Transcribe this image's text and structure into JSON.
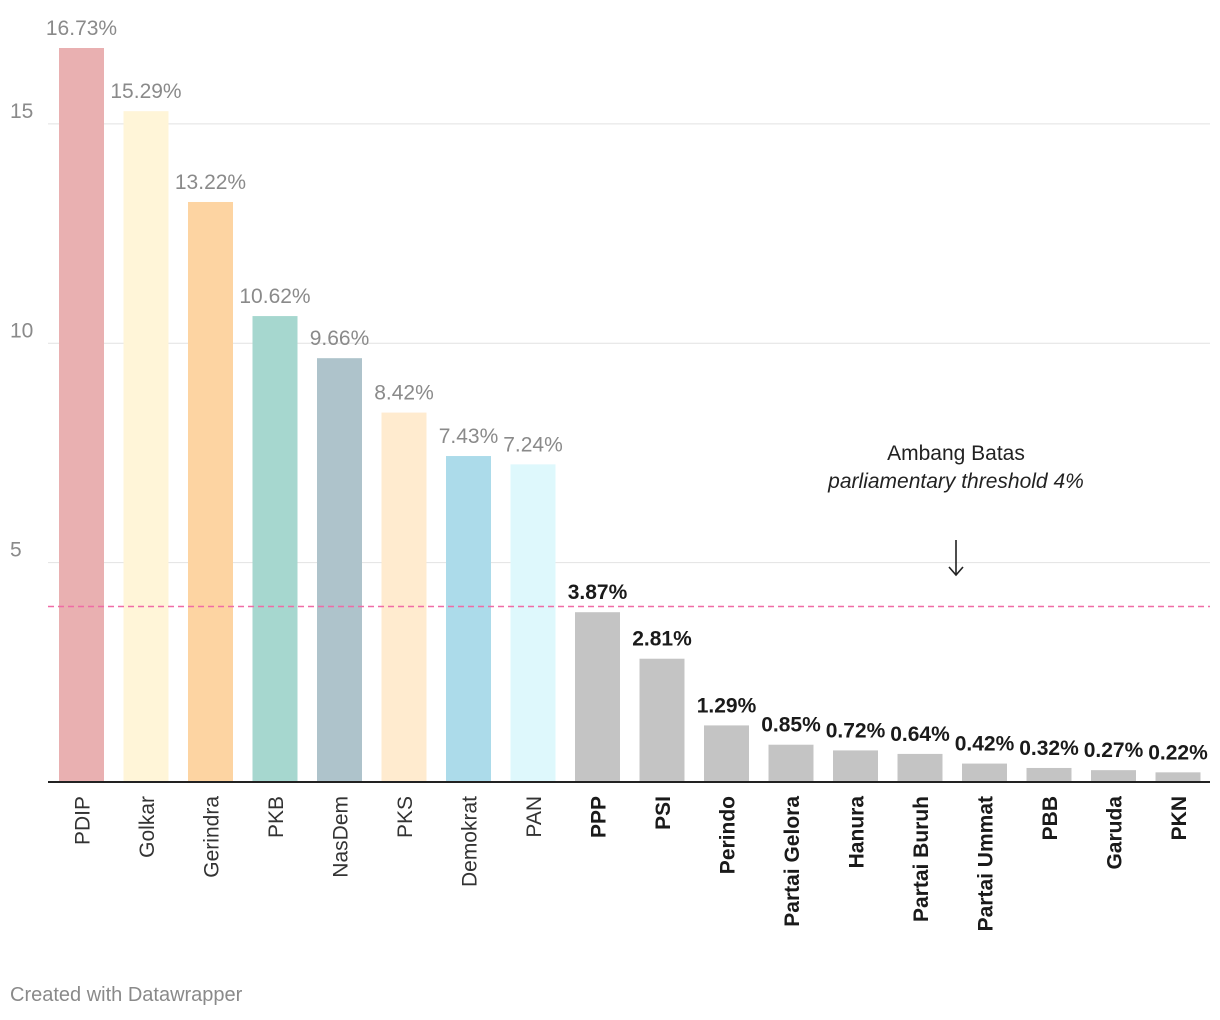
{
  "chart_data": {
    "type": "bar",
    "categories": [
      "PDIP",
      "Golkar",
      "Gerindra",
      "PKB",
      "NasDem",
      "PKS",
      "Demokrat",
      "PAN",
      "PPP",
      "PSI",
      "Perindo",
      "Partai Gelora",
      "Hanura",
      "Partai Buruh",
      "Partai Ummat",
      "PBB",
      "Garuda",
      "PKN"
    ],
    "values": [
      16.73,
      15.29,
      13.22,
      10.62,
      9.66,
      8.42,
      7.43,
      7.24,
      3.87,
      2.81,
      1.29,
      0.85,
      0.72,
      0.64,
      0.42,
      0.32,
      0.27,
      0.22
    ],
    "value_labels": [
      "16.73%",
      "15.29%",
      "13.22%",
      "10.62%",
      "9.66%",
      "8.42%",
      "7.43%",
      "7.24%",
      "3.87%",
      "2.81%",
      "1.29%",
      "0.85%",
      "0.72%",
      "0.64%",
      "0.42%",
      "0.32%",
      "0.27%",
      "0.22%"
    ],
    "colors": [
      "#e9b0b1",
      "#fff5d8",
      "#fdd4a2",
      "#a6d7cf",
      "#aec3cb",
      "#ffebcf",
      "#acdbea",
      "#def8fc",
      "#c4c4c4",
      "#c4c4c4",
      "#c4c4c4",
      "#c4c4c4",
      "#c4c4c4",
      "#c4c4c4",
      "#c4c4c4",
      "#c4c4c4",
      "#c4c4c4",
      "#c4c4c4"
    ],
    "emphasized_from_index": 8,
    "y_ticks": [
      5,
      10,
      15
    ],
    "y_tick_labels": [
      "5",
      "10",
      "15"
    ],
    "ylim": [
      0,
      16.73
    ],
    "grid": true,
    "threshold": {
      "value": 4,
      "color": "#f06ba6"
    },
    "title": "",
    "xlabel": "",
    "ylabel": ""
  },
  "annotation": {
    "line1": "Ambang Batas",
    "line2": "parliamentary threshold 4%"
  },
  "footer": {
    "credit": "Created with Datawrapper"
  }
}
